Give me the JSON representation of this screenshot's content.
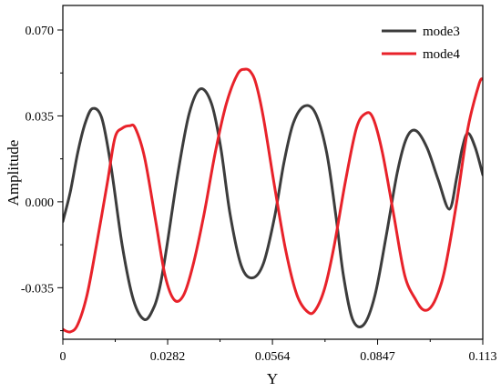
{
  "chart_data": {
    "type": "line",
    "xlabel": "Y",
    "ylabel": "Amplitude",
    "xlim": [
      0,
      0.113
    ],
    "ylim": [
      -0.056,
      0.08
    ],
    "xticks": [
      {
        "value": 0,
        "label": "0"
      },
      {
        "value": 0.0282,
        "label": "0.0282"
      },
      {
        "value": 0.0564,
        "label": "0.0564"
      },
      {
        "value": 0.0847,
        "label": "0.0847"
      },
      {
        "value": 0.113,
        "label": "0.113"
      }
    ],
    "yticks": [
      {
        "value": -0.035,
        "label": "-0.035"
      },
      {
        "value": 0.0,
        "label": "0.000"
      },
      {
        "value": 0.035,
        "label": "0.035"
      },
      {
        "value": 0.07,
        "label": "0.070"
      }
    ],
    "grid": false,
    "legend": "top-right",
    "series": [
      {
        "name": "mode3",
        "color": "#3c3c3c",
        "x": [
          0.0,
          0.002,
          0.004,
          0.006,
          0.008,
          0.0105,
          0.013,
          0.016,
          0.019,
          0.022,
          0.0245,
          0.0262,
          0.028,
          0.031,
          0.034,
          0.037,
          0.04,
          0.0425,
          0.045,
          0.048,
          0.051,
          0.054,
          0.057,
          0.0595,
          0.062,
          0.065,
          0.068,
          0.071,
          0.0735,
          0.0755,
          0.078,
          0.081,
          0.084,
          0.087,
          0.09,
          0.0925,
          0.095,
          0.098,
          0.101,
          0.104,
          0.106,
          0.1075,
          0.109,
          0.111,
          0.113
        ],
        "y": [
          -0.008,
          0.004,
          0.02,
          0.032,
          0.038,
          0.034,
          0.014,
          -0.018,
          -0.04,
          -0.048,
          -0.043,
          -0.034,
          -0.018,
          0.012,
          0.036,
          0.046,
          0.04,
          0.022,
          -0.005,
          -0.026,
          -0.031,
          -0.025,
          -0.006,
          0.016,
          0.032,
          0.039,
          0.036,
          0.02,
          -0.006,
          -0.03,
          -0.048,
          -0.05,
          -0.038,
          -0.014,
          0.012,
          0.026,
          0.029,
          0.022,
          0.009,
          -0.003,
          0.01,
          0.022,
          0.028,
          0.022,
          0.011
        ]
      },
      {
        "name": "mode4",
        "color": "#e8222a",
        "x": [
          0.0,
          0.002,
          0.004,
          0.0065,
          0.009,
          0.012,
          0.014,
          0.016,
          0.018,
          0.0195,
          0.022,
          0.025,
          0.0275,
          0.03,
          0.0325,
          0.035,
          0.038,
          0.041,
          0.044,
          0.047,
          0.049,
          0.0505,
          0.052,
          0.054,
          0.057,
          0.06,
          0.063,
          0.066,
          0.068,
          0.0705,
          0.073,
          0.076,
          0.079,
          0.0815,
          0.0835,
          0.086,
          0.089,
          0.092,
          0.095,
          0.097,
          0.099,
          0.101,
          0.103,
          0.106,
          0.109,
          0.112,
          0.113
        ],
        "y": [
          -0.052,
          -0.053,
          -0.05,
          -0.038,
          -0.018,
          0.008,
          0.026,
          0.03,
          0.031,
          0.03,
          0.018,
          -0.008,
          -0.03,
          -0.04,
          -0.038,
          -0.026,
          -0.005,
          0.02,
          0.04,
          0.052,
          0.054,
          0.053,
          0.048,
          0.034,
          0.006,
          -0.02,
          -0.038,
          -0.045,
          -0.044,
          -0.035,
          -0.018,
          0.008,
          0.03,
          0.036,
          0.034,
          0.02,
          -0.005,
          -0.03,
          -0.04,
          -0.044,
          -0.043,
          -0.037,
          -0.026,
          0.0,
          0.03,
          0.048,
          0.05
        ]
      }
    ]
  }
}
